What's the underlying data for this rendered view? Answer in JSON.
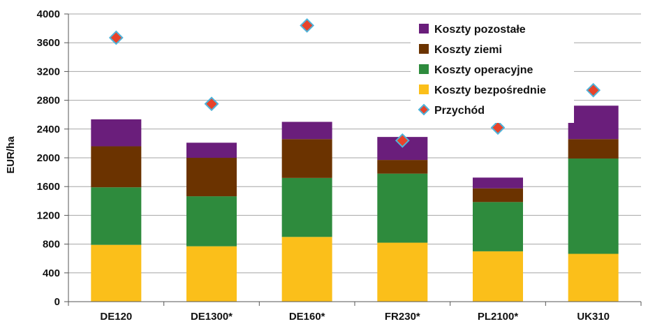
{
  "chart_data": {
    "type": "bar",
    "stacked": true,
    "categories": [
      "DE120",
      "DE1300*",
      "DE160*",
      "FR230*",
      "PL2100*",
      "UK310"
    ],
    "series": [
      {
        "name": "Koszty bezpośrednie",
        "type": "bar",
        "color": "#FBBF1A",
        "values": [
          790,
          770,
          900,
          820,
          700,
          665
        ]
      },
      {
        "name": "Koszty operacyjne",
        "type": "bar",
        "color": "#2E8B3D",
        "values": [
          800,
          695,
          820,
          960,
          685,
          1325
        ]
      },
      {
        "name": "Koszty ziemi",
        "type": "bar",
        "color": "#6B3300",
        "values": [
          570,
          535,
          540,
          190,
          190,
          270
        ]
      },
      {
        "name": "Koszty pozostałe",
        "type": "bar",
        "color": "#6A1E7B",
        "values": [
          375,
          210,
          240,
          320,
          150,
          465
        ]
      },
      {
        "name": "Przychód",
        "type": "marker",
        "color": "#E8432A",
        "values": [
          3670,
          2750,
          3840,
          2240,
          2420,
          2940
        ]
      }
    ],
    "ylabel": "EUR/ha",
    "xlabel": "",
    "ylim": [
      0,
      4000
    ],
    "yticks": [
      "0",
      "400",
      "800",
      "1200",
      "1600",
      "2000",
      "2400",
      "2800",
      "3200",
      "3600",
      "4000"
    ],
    "grid": true,
    "legend": "top-right"
  }
}
